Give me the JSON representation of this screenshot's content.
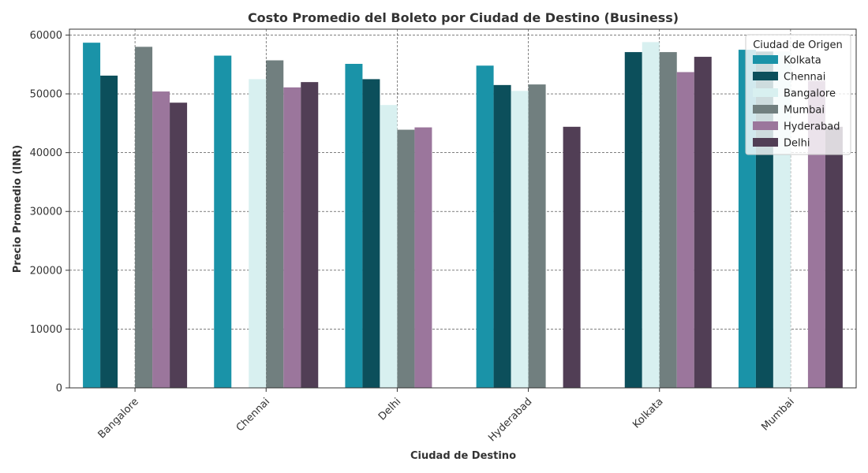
{
  "chart_data": {
    "type": "bar",
    "title": "Costo Promedio del Boleto por Ciudad de Destino (Business)",
    "xlabel": "Ciudad de Destino",
    "ylabel": "Precio Promedio (INR)",
    "ylim": [
      0,
      61000
    ],
    "yticks": [
      0,
      10000,
      20000,
      30000,
      40000,
      50000,
      60000
    ],
    "grid": true,
    "legend_title": "Ciudad de Origen",
    "legend_position": "top-right",
    "categories": [
      "Bangalore",
      "Chennai",
      "Delhi",
      "Hyderabad",
      "Kolkata",
      "Mumbai"
    ],
    "series": [
      {
        "name": "Kolkata",
        "color": "#1a93a8",
        "values": [
          58700,
          56500,
          55100,
          54800,
          null,
          57500
        ]
      },
      {
        "name": "Chennai",
        "color": "#0c4f5b",
        "values": [
          53100,
          null,
          52500,
          51500,
          57100,
          57200
        ]
      },
      {
        "name": "Bangalore",
        "color": "#d8f0f0",
        "values": [
          null,
          52500,
          48100,
          50500,
          58800,
          57200
        ]
      },
      {
        "name": "Mumbai",
        "color": "#717f7f",
        "values": [
          58000,
          55700,
          43900,
          51600,
          57100,
          null
        ]
      },
      {
        "name": "Hyderabad",
        "color": "#9b769c",
        "values": [
          50400,
          51100,
          44300,
          null,
          53700,
          52200
        ]
      },
      {
        "name": "Delhi",
        "color": "#513e55",
        "values": [
          48500,
          52000,
          null,
          44400,
          56300,
          44400
        ]
      }
    ]
  }
}
